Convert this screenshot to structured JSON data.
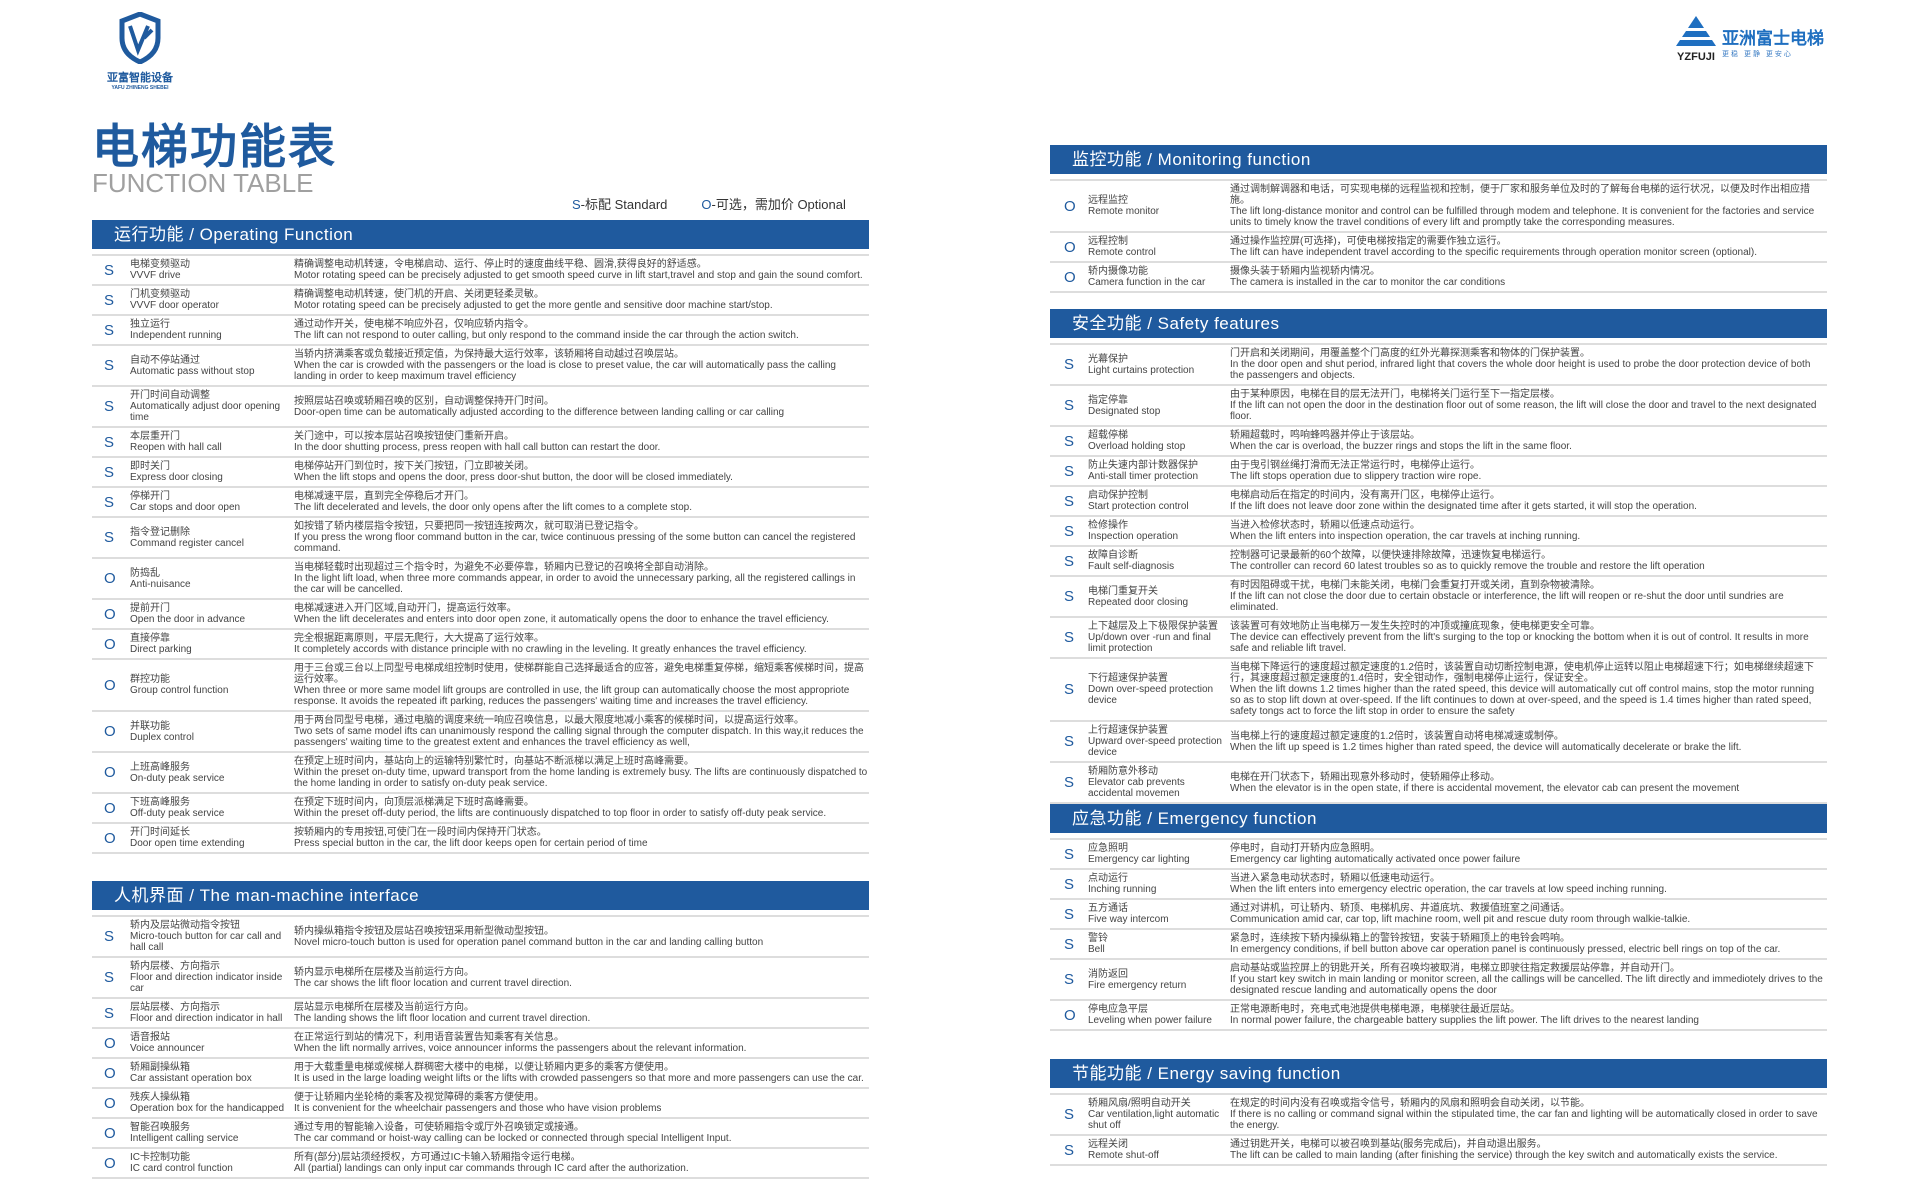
{
  "logos": {
    "left_cn": "亚富智能设备",
    "left_en": "YAFU ZHINENG SHEBEI",
    "right_brand": "亚洲富士电梯",
    "right_slogan": "更稳  更静  更安心",
    "right_en": "YZFUJI",
    "colors": {
      "brand": "#1f5a9e"
    }
  },
  "header": {
    "title": "电梯功能表",
    "subtitle": "FUNCTION TABLE",
    "legend": [
      {
        "mark": "S",
        "text": "-标配  Standard"
      },
      {
        "mark": "O",
        "text": "-可选，需加价  Optional"
      }
    ]
  },
  "sections": [
    {
      "title": "运行功能 / Operating Function",
      "rows": [
        {
          "m": "S",
          "cn": "电梯变频驱动",
          "en": "VVVF drive",
          "dcn": "精确调整电动机转速，令电梯启动、运行、停止时的速度曲线平稳、圆滑,获得良好的舒适感。",
          "den": "Motor rotating speed can be precisely adjusted to get smooth speed curve in lift start,travel and stop and gain the sound comfort."
        },
        {
          "m": "S",
          "cn": "门机变频驱动",
          "en": "VVVF door operator",
          "dcn": "精确调整电动机转速，使门机的开启、关闭更轻柔灵敏。",
          "den": "Motor rotating speed can be precisely adjusted to get the more gentle and sensitive door machine start/stop."
        },
        {
          "m": "S",
          "cn": "独立运行",
          "en": "Independent running",
          "dcn": "通过动作开关，使电梯不响应外召，仅响应轿内指令。",
          "den": "The lift can not respond to outer calling, but only respond to the command inside the car through the action switch."
        },
        {
          "m": "S",
          "cn": "自动不停站通过",
          "en": "Automatic pass without stop",
          "dcn": "当轿内挤满乘客或负载接近预定值，为保持最大运行效率，该轿厢将自动越过召唤层站。",
          "den": "When the car is crowded with the passengers or the load is close to preset value, the car will automatically pass the calling landing in order to keep maximum travel efficiency"
        },
        {
          "m": "S",
          "cn": "开门时间自动调整",
          "en": "Automatically adjust door opening time",
          "dcn": "按照层站召唤或轿厢召唤的区别，自动调整保持开门时间。",
          "den": "Door-open time can be automatically adjusted according to the difference between landing calling or car calling"
        },
        {
          "m": "S",
          "cn": "本层重开门",
          "en": "Reopen with hall call",
          "dcn": "关门途中，可以按本层站召唤按钮使门重新开启。",
          "den": "In the door shutting process, press reopen with hall call button can restart the door."
        },
        {
          "m": "S",
          "cn": "即时关门",
          "en": "Express door closing",
          "dcn": "电梯停站开门到位时，按下关门按钮，门立即被关闭。",
          "den": "When the lift stops and opens the door, press door-shut button, the door will be closed immediately."
        },
        {
          "m": "S",
          "cn": "停梯开门",
          "en": "Car stops and door open",
          "dcn": "电梯减速平层，直到完全停稳后才开门。",
          "den": "The lift decelerated and levels, the door only opens after the lift comes to a complete stop."
        },
        {
          "m": "S",
          "cn": "指令登记删除",
          "en": "Command register cancel",
          "dcn": "如按错了轿内楼层指令按钮，只要把同一按钮连按两次，就可取消已登记指令。",
          "den": "If you press the wrong floor command button in the car, twice continuous pressing of the some button can cancel the registered command."
        },
        {
          "m": "O",
          "cn": "防捣乱",
          "en": "Anti-nuisance",
          "dcn": "当电梯轻载时出现超过三个指令时，为避免不必要停靠，轿厢内已登记的召唤将全部自动消除。",
          "den": "In the light lift load, when three more commands appear, in order to avoid the unnecessary parking, all the registered callings in the car will be cancelled."
        },
        {
          "m": "O",
          "cn": "提前开门",
          "en": "Open the door in advance",
          "dcn": "电梯减速进入开门区域,自动开门，提高运行效率。",
          "den": "When the lift decelerates and enters into door open zone, it automatically opens the door to enhance the travel efficiency."
        },
        {
          "m": "O",
          "cn": "直接停靠",
          "en": "Direct parking",
          "dcn": "完全根据距离原则，平层无爬行，大大提高了运行效率。",
          "den": "It completely accords with distance principle with no crawling in the leveling. It greatly enhances the travel efficiency."
        },
        {
          "m": "O",
          "cn": "群控功能",
          "en": "Group control function",
          "dcn": "用于三台或三台以上同型号电梯成组控制时使用，使梯群能自己选择最适合的应答，避免电梯重复停梯，缩短乘客候梯时间，提高运行效率。",
          "den": "When three or more same model lift groups are controlled in use, the lift group can automatically choose the most appropriote response. It avoids the repeated ift parking, reduces the passengers' waiting time and increases the travel efficiency."
        },
        {
          "m": "O",
          "cn": "并联功能",
          "en": "Duplex control",
          "dcn": "用于两台同型号电梯，通过电脑的调度来统一响应召唤信息，以最大限度地减小乘客的候梯时间，以提高运行效率。",
          "den": "Two sets of same model ifts can unanimously respond the calling signal through the computer dispatch. In this way,it reduces the passengers' waiting time to the greatest extent and enhances the travel efficiency as well,"
        },
        {
          "m": "O",
          "cn": "上班高峰服务",
          "en": "On-duty peak service",
          "dcn": "在预定上班时间内，基站向上的运输特别繁忙时，向基站不断派梯以满足上班时高峰需要。",
          "den": "Within the preset on-duty time, upward transport from the home landing is extremely busy. The lifts are continuously dispatched to the home landing in order to satisfy on-duty peak service."
        },
        {
          "m": "O",
          "cn": "下班高峰服务",
          "en": "Off-duty peak service",
          "dcn": "在预定下班时间内，向顶层派梯满足下班时高峰需要。",
          "den": "Within the preset off-duty period, the lifts are continuously dispatched to top floor in order to satisfy off-duty peak service."
        },
        {
          "m": "O",
          "cn": "开门时间延长",
          "en": "Door open time extending",
          "dcn": "按轿厢内的专用按钮,可使门在一段时间内保持开门状态。",
          "den": "Press special button in the car, the lift door keeps open for certain period of time"
        }
      ]
    },
    {
      "title": "人机界面 / The man-machine interface",
      "rows": [
        {
          "m": "S",
          "cn": "轿内及层站微动指令按钮",
          "en": "Micro-touch button for car call and hall call",
          "dcn": "轿内操纵箱指令按钮及层站召唤按钮采用新型微动型按钮。",
          "den": "Novel micro-touch button is used for operation panel command button in the car and landing calling button"
        },
        {
          "m": "S",
          "cn": "轿内层楼、方向指示",
          "en": "Floor and direction indicator inside car",
          "dcn": "轿内显示电梯所在层楼及当前运行方向。",
          "den": "The car shows the lift floor location and current travel direction."
        },
        {
          "m": "S",
          "cn": "层站层楼、方向指示",
          "en": "Floor and direction indicator in hall",
          "dcn": "层站显示电梯所在层楼及当前运行方向。",
          "den": "The landing shows the lift floor location and current travel direction."
        },
        {
          "m": "O",
          "cn": "语音报站",
          "en": "Voice announcer",
          "dcn": "在正常运行到站的情况下，利用语音装置告知乘客有关信息。",
          "den": "When the lift normally arrives, voice announcer informs the passengers about the relevant information."
        },
        {
          "m": "O",
          "cn": "轿厢副操纵箱",
          "en": "Car assistant operation box",
          "dcn": "用于大载重量电梯或候梯人群稠密大楼中的电梯，以便让轿厢内更多的乘客方便使用。",
          "den": "It is used in the large loading weight lifts or the lifts with crowded passengers so that more and more passengers can use the car."
        },
        {
          "m": "O",
          "cn": "残疾人操纵箱",
          "en": "Operation box for the handicapped",
          "dcn": "便于让轿厢内坐轮椅的乘客及视觉障碍的乘客方便使用。",
          "den": "It is convenient for the wheelchair passengers and those who have vision problems"
        },
        {
          "m": "O",
          "cn": "智能召唤服务",
          "en": "Intelligent calling service",
          "dcn": "通过专用的智能输入设备，可使轿厢指令或厅外召唤锁定或接通。",
          "den": "The car command or hoist-way calling can be locked or connected through special Intelligent Input."
        },
        {
          "m": "O",
          "cn": "IC卡控制功能",
          "en": "IC card control function",
          "dcn": "所有(部分)层站须经授权，方可通过IC卡输入轿厢指令运行电梯。",
          "den": "All (partial) landings can only input car commands through IC card after the authorization."
        }
      ]
    },
    {
      "title": "监控功能 / Monitoring function",
      "rows": [
        {
          "m": "O",
          "cn": "远程监控",
          "en": "Remote monitor",
          "dcn": "通过调制解调器和电话，可实现电梯的远程监视和控制，便于厂家和服务单位及时的了解每台电梯的运行状况，以便及时作出相应措施。",
          "den": "The lift long-distance monitor and control can be fulfilled through modem and telephone. It is convenient for the factories and service units to timely know the travel conditions of every lift and promptly take the corresponding measures."
        },
        {
          "m": "O",
          "cn": "远程控制",
          "en": "Remote control",
          "dcn": "通过操作监控屏(可选择)，可使电梯按指定的需要作独立运行。",
          "den": "The lift can have independent travel according to the specific requirements through operation monitor screen (optional)."
        },
        {
          "m": "O",
          "cn": "轿内摄像功能",
          "en": "Camera function in the car",
          "dcn": "摄像头装于轿厢内监视轿内情况。",
          "den": "The camera is installed in the car to monitor the car conditions"
        }
      ]
    },
    {
      "title": "安全功能 / Safety features",
      "rows": [
        {
          "m": "S",
          "cn": "光幕保护",
          "en": "Light curtains protection",
          "dcn": "门开启和关闭期间，用覆盖整个门高度的红外光幕探测乘客和物体的门保护装置。",
          "den": "In the door open and shut period, infrared light that covers the whole door height is used to probe the door protection device of both the passengers and objects."
        },
        {
          "m": "S",
          "cn": "指定停靠",
          "en": "Designated stop",
          "dcn": "由于某种原因，电梯在目的层无法开门，电梯将关门运行至下一指定层楼。",
          "den": "If the lift can not open the door in the destination floor out of some reason, the lift will close the door and travel to the next designated floor."
        },
        {
          "m": "S",
          "cn": "超载停梯",
          "en": "Overload holding stop",
          "dcn": "轿厢超载时，鸣响蜂鸣器并停止于该层站。",
          "den": "When the car is overload, the buzzer rings and stops the lift in the same floor."
        },
        {
          "m": "S",
          "cn": "防止失速内部计数器保护",
          "en": "Anti-stall timer protection",
          "dcn": "由于曳引钢丝绳打滑而无法正常运行时，电梯停止运行。",
          "den": "The lift stops operation due to slippery traction wire rope."
        },
        {
          "m": "S",
          "cn": "启动保护控制",
          "en": "Start protection control",
          "dcn": "电梯启动后在指定的时间内，没有离开门区，电梯停止运行。",
          "den": "If the lift does not leave door zone within the designated time after it gets started, it will stop the operation."
        },
        {
          "m": "S",
          "cn": "检修操作",
          "en": "Inspection operation",
          "dcn": "当进入检修状态时，轿厢以低速点动运行。",
          "den": "When the lift enters into inspection operation, the car travels at inching running."
        },
        {
          "m": "S",
          "cn": "故障自诊断",
          "en": "Fault self-diagnosis",
          "dcn": "控制器可记录最新的60个故障，以便快速排除故障，迅速恢复电梯运行。",
          "den": "The controller can record 60 latest troubles so as to quickly remove the trouble and restore the lift operation"
        },
        {
          "m": "S",
          "cn": "电梯门重复开关",
          "en": "Repeated door closing",
          "dcn": "有时因阻碍或干扰，电梯门未能关闭，电梯门会重复打开或关闭，直到杂物被清除。",
          "den": "If the lift can not close the door due to certain obstacle or interference, the lift will reopen or re-shut the door until sundries are eliminated."
        },
        {
          "m": "S",
          "cn": "上下越层及上下极限保护装置",
          "en": "Up/down over -run and final limit protection",
          "dcn": "该装置可有效地防止当电梯万一发生失控时的冲顶或撞底现象，使电梯更安全可靠。",
          "den": "The device can effectively prevent from the lift's surging to the top or knocking the bottom when it is out of control. It results in more safe and reliable lift travel."
        },
        {
          "m": "S",
          "cn": "下行超速保护装置",
          "en": "Down over-speed protection device",
          "dcn": "当电梯下降运行的速度超过额定速度的1.2倍时，该装置自动切断控制电源，使电机停止运转以阻止电梯超速下行；如电梯继续超速下行，其速度超过额定速度的1.4倍时，安全钳动作，强制电梯停止运行，保证安全。",
          "den": "When the lift downs 1.2 times higher than the rated speed, this device will automatically cut off control mains, stop the motor running so as to stop lift down at over-speed. If the lift continues to down at over-speed, and the speed is 1.4 times higher than rated speed, safety tongs act to force the lift stop in order to ensure the safety"
        },
        {
          "m": "S",
          "cn": "上行超速保护装置",
          "en": "Upward over-speed protection device",
          "dcn": "当电梯上行的速度超过额定速度的1.2倍时，该装置自动将电梯减速或制停。",
          "den": "When the lift up speed is 1.2 times higher than rated speed, the device will automatically decelerate or brake the lift."
        },
        {
          "m": "S",
          "cn": "轿厢防意外移动",
          "en": "Elevator cab prevents accidental movemen",
          "dcn": "电梯在开门状态下，轿厢出现意外移动时，使轿厢停止移动。",
          "den": "When the elevator is in the open state, if there is accidental movement, the elevator cab can present the movement"
        }
      ]
    },
    {
      "title": "应急功能 / Emergency function",
      "rows": [
        {
          "m": "S",
          "cn": "应急照明",
          "en": "Emergency car lighting",
          "dcn": "停电时，自动打开轿内应急照明。",
          "den": "Emergency car lighting automatically activated once power failure"
        },
        {
          "m": "S",
          "cn": "点动运行",
          "en": "Inching running",
          "dcn": "当进入紧急电动状态时，轿厢以低速电动运行。",
          "den": "When the lift enters into emergency electric operation, the car travels at low speed inching running."
        },
        {
          "m": "S",
          "cn": "五方通话",
          "en": "Five way intercom",
          "dcn": "通过对讲机，可让轿内、轿顶、电梯机房、井道底坑、救援值班室之间通话。",
          "den": "Communication amid car, car top, lift machine room, well pit and rescue duty room through walkie-talkie."
        },
        {
          "m": "S",
          "cn": "警铃",
          "en": "Bell",
          "dcn": "紧急时，连续按下轿内操纵箱上的警铃按钮，安装于轿厢顶上的电铃会鸣响。",
          "den": "In emergency conditions, if bell button above car operation panel is continuously pressed, electric bell rings on top of the car."
        },
        {
          "m": "S",
          "cn": "消防返回",
          "en": "Fire emergency return",
          "dcn": "启动基站或监控屏上的钥匙开关，所有召唤均被取消，电梯立即驶往指定救援层站停靠，并自动开门。",
          "den": "If you start key switch in main landing or monitor screen, all the callings will be cancelled. The lift directly and immediotely drives to the designated rescue landing and automatically opens the door"
        },
        {
          "m": "O",
          "cn": "停电应急平层",
          "en": "Leveling when power failure",
          "dcn": "正常电源断电时，充电式电池提供电梯电源，电梯驶往最近层站。",
          "den": "In normal power failure, the chargeable battery supplies the lift power. The lift drives to the nearest landing"
        }
      ]
    },
    {
      "title": "节能功能 / Energy saving function",
      "rows": [
        {
          "m": "S",
          "cn": "轿厢风扇/照明自动开关",
          "en": "Car ventilation,light automatic shut off",
          "dcn": "在规定的时间内没有召唤或指令信号，轿厢内的风扇和照明会自动关闭，以节能。",
          "den": "If there is no calling or command signal within the stipulated time, the car fan and lighting will be automatically closed in order to save the energy."
        },
        {
          "m": "S",
          "cn": "远程关闭",
          "en": "Remote shut-off",
          "dcn": "通过钥匙开关，电梯可以被召唤到基站(服务完成后)，并自动退出服务。",
          "den": "The lift can be called to main landing (after finishing the service) through the key switch and automatically exists the service."
        }
      ]
    }
  ]
}
